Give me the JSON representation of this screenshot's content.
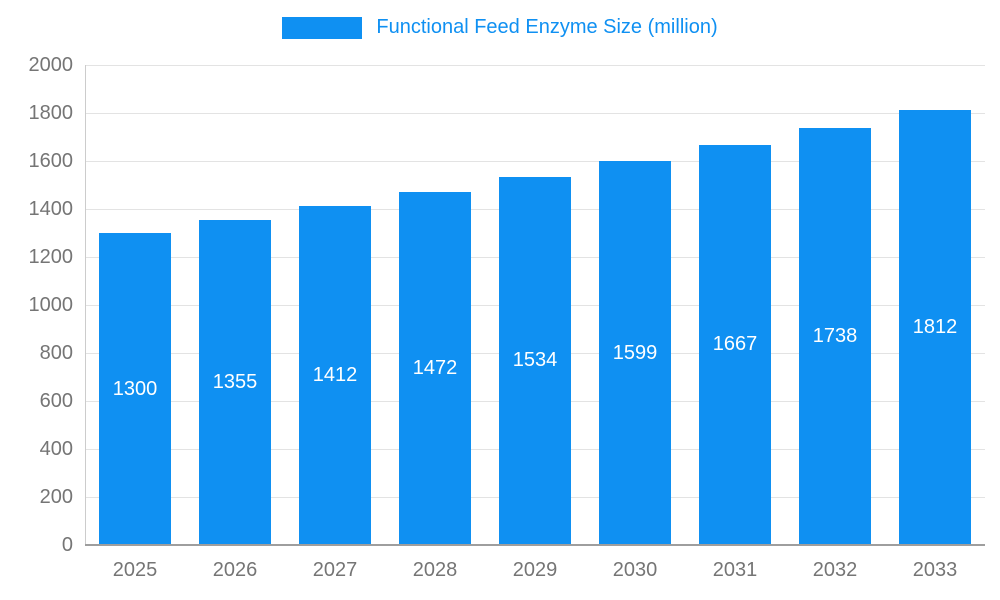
{
  "chart_data": {
    "type": "bar",
    "title": "Functional Feed Enzyme Size (million)",
    "categories": [
      "2025",
      "2026",
      "2027",
      "2028",
      "2029",
      "2030",
      "2031",
      "2032",
      "2033"
    ],
    "values": [
      1300,
      1355,
      1412,
      1472,
      1534,
      1599,
      1667,
      1738,
      1812
    ],
    "xlabel": "",
    "ylabel": "",
    "ylim": [
      0,
      2000
    ],
    "ytick_step": 200,
    "ytick_labels": [
      "0",
      "200",
      "400",
      "600",
      "800",
      "1000",
      "1200",
      "1400",
      "1600",
      "1800",
      "2000"
    ],
    "grid": true,
    "legend_position": "top",
    "bar_color": "#0f90f2",
    "title_color": "#0f90f2",
    "value_label_color": "#ffffff",
    "axis_label_color": "#757575",
    "gridline_color": "#e3e3e3"
  }
}
